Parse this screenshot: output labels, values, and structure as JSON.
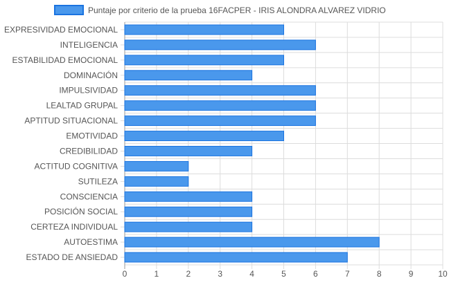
{
  "chart_data": {
    "type": "bar",
    "orientation": "horizontal",
    "categories": [
      "EXPRESIVIDAD EMOCIONAL",
      "INTELIGENCIA",
      "ESTABILIDAD EMOCIONAL",
      "DOMINACIÓN",
      "IMPULSIVIDAD",
      "LEALTAD GRUPAL",
      "APTITUD SITUACIONAL",
      "EMOTIVIDAD",
      "CREDIBILIDAD",
      "ACTITUD COGNITIVA",
      "SUTILEZA",
      "CONSCIENCIA",
      "POSICIÓN SOCIAL",
      "CERTEZA INDIVIDUAL",
      "AUTOESTIMA",
      "ESTADO DE ANSIEDAD"
    ],
    "series": [
      {
        "name": "Puntaje por criterio de la prueba 16FACPER - IRIS ALONDRA ALVAREZ VIDRIO",
        "values": [
          5,
          6,
          5,
          4,
          6,
          6,
          6,
          5,
          4,
          2,
          2,
          4,
          4,
          4,
          8,
          7
        ]
      }
    ],
    "xlim": [
      0,
      10
    ],
    "xticks": [
      "0",
      "1",
      "2",
      "3",
      "4",
      "5",
      "6",
      "7",
      "8",
      "9",
      "10"
    ],
    "grid": true,
    "legend_position": "top"
  },
  "colors": {
    "bar_fill": "#4a98ec",
    "bar_stroke": "#1a73e0",
    "grid": "#dcdcdc",
    "axis": "#999999",
    "text": "#555555"
  }
}
